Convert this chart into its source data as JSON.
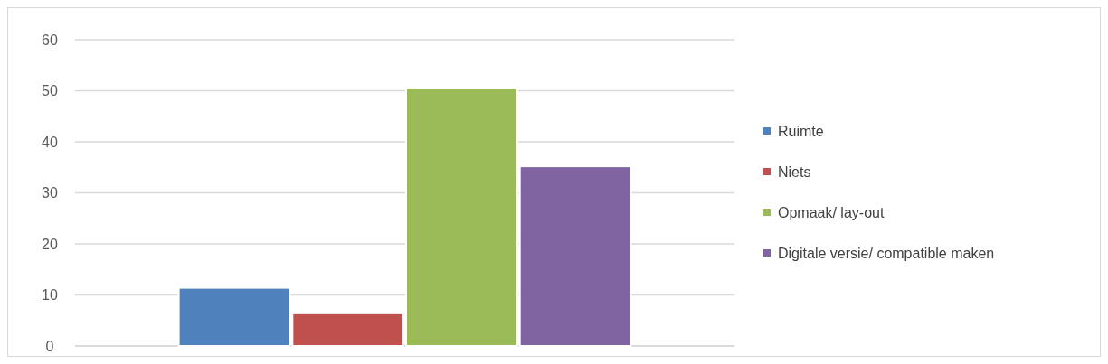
{
  "chart_data": {
    "type": "bar",
    "categories": [
      null
    ],
    "series": [
      {
        "name": "Ruimte",
        "color": "#4f81bd",
        "values": [
          11.4
        ]
      },
      {
        "name": "Niets",
        "color": "#c0504d",
        "values": [
          6.4
        ]
      },
      {
        "name": "Opmaak/ lay-out",
        "color": "#9bbb59",
        "values": [
          50.6
        ]
      },
      {
        "name": "Digitale versie/ compatible maken",
        "color": "#8064a2",
        "values": [
          35.2
        ]
      }
    ],
    "ylim": [
      0,
      60
    ],
    "yticks": [
      0,
      10,
      20,
      30,
      40,
      50,
      60
    ],
    "grid": "y",
    "legend": "right"
  }
}
